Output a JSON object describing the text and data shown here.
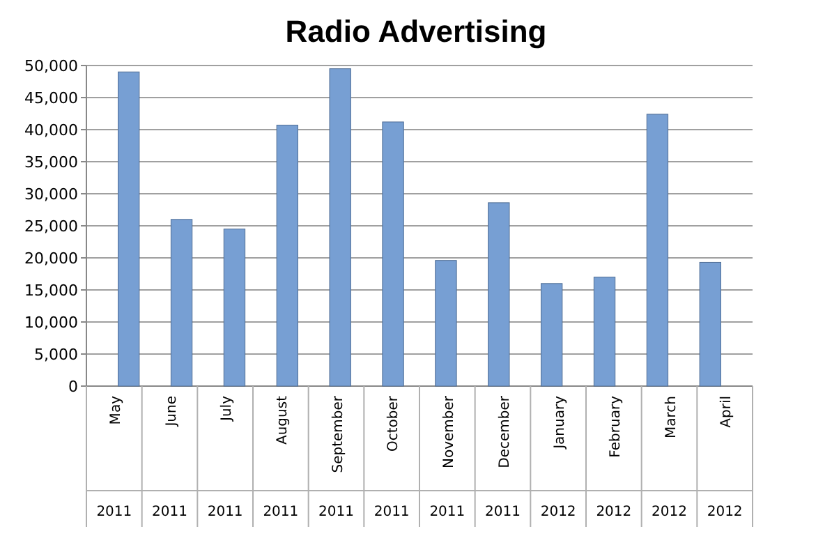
{
  "chart_data": {
    "type": "bar",
    "title": "Radio Advertising",
    "categories": [
      "May 2011",
      "June 2011",
      "July 2011",
      "August 2011",
      "September 2011",
      "October 2011",
      "November 2011",
      "December 2011",
      "January 2012",
      "February 2012",
      "March 2012",
      "April 2012"
    ],
    "values": [
      49000,
      26000,
      24500,
      40700,
      49500,
      41200,
      19600,
      28600,
      16000,
      17000,
      42400,
      19300
    ],
    "color": "#779fd3",
    "ylim": [
      0,
      50000
    ],
    "yticks": [
      {
        "value": 0,
        "label": "0"
      },
      {
        "value": 5000,
        "label": "5,000"
      },
      {
        "value": 10000,
        "label": "10,000"
      },
      {
        "value": 15000,
        "label": "15,000"
      },
      {
        "value": 20000,
        "label": "20,000"
      },
      {
        "value": 25000,
        "label": "25,000"
      },
      {
        "value": 30000,
        "label": "30,000"
      },
      {
        "value": 35000,
        "label": "35,000"
      },
      {
        "value": 40000,
        "label": "40,000"
      },
      {
        "value": 45000,
        "label": "45,000"
      },
      {
        "value": 50000,
        "label": "50,000"
      }
    ],
    "grid": true
  }
}
